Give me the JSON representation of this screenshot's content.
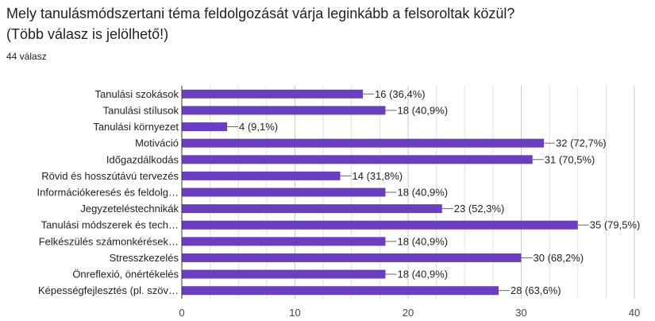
{
  "question": {
    "line1": "Mely tanulásmódszertani téma feldolgozását várja leginkább a felsoroltak közül?",
    "line2": "(Több válasz is jelölhető!)"
  },
  "response_count": "44 válasz",
  "colors": {
    "bar": "#6a3fbf",
    "grid": "#e0e0e0",
    "axis": "#333333"
  },
  "chart_data": {
    "type": "bar",
    "orientation": "horizontal",
    "categories": [
      "Tanulási szokások",
      "Tanulási stílusok",
      "Tanulási környezet",
      "Motiváció",
      "Időgazdálkodás",
      "Rövid és hosszútávú tervezés",
      "Információkeresés és feldolg…",
      "Jegyzeteléstechnikák",
      "Tanulási módszerek és tech…",
      "Felkészülés számonkérések…",
      "Stresszkezelés",
      "Önreflexió, önértékelés",
      "Képességfejlesztés (pl. szöv…"
    ],
    "values": [
      16,
      18,
      4,
      32,
      31,
      14,
      18,
      23,
      35,
      18,
      30,
      18,
      28
    ],
    "data_labels": [
      "16 (36,4%)",
      "18 (40,9%)",
      "4 (9,1%)",
      "32 (72,7%)",
      "31 (70,5%)",
      "14 (31,8%)",
      "18 (40,9%)",
      "23 (52,3%)",
      "35 (79,5%)",
      "18 (40,9%)",
      "30 (68,2%)",
      "18 (40,9%)",
      "28 (63,6%)"
    ],
    "xlim": [
      0,
      40
    ],
    "xticks": [
      "0",
      "10",
      "20",
      "30",
      "40"
    ],
    "grid": true
  }
}
